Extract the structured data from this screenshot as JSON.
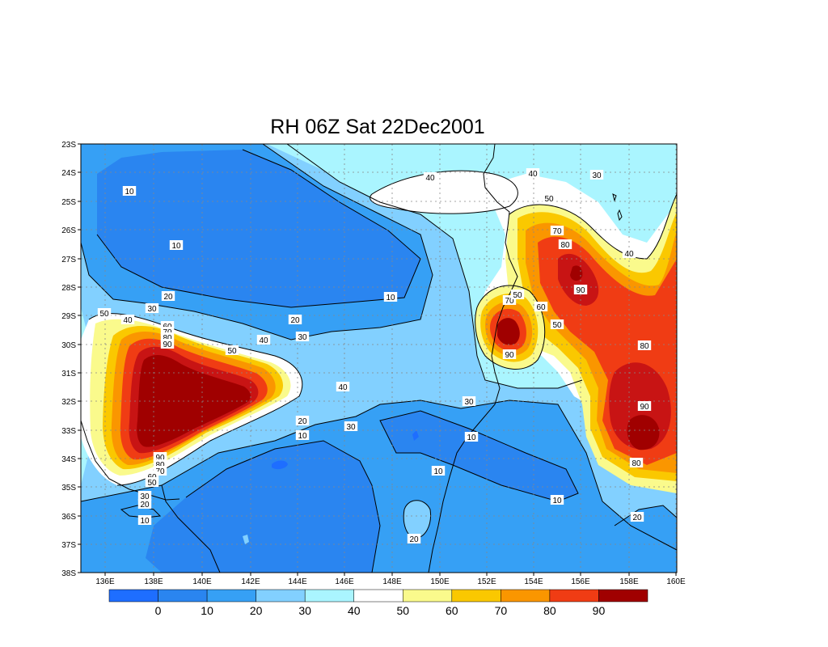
{
  "title": "RH 06Z Sat 22Dec2001",
  "colors": {
    "lt0": "#1e6eff",
    "b0_10": "#2a85f0",
    "b10_20": "#36a0f5",
    "b20_30": "#82d0ff",
    "b30_40": "#aaf5ff",
    "b40_50": "#ffffff",
    "b50_60": "#fafa8c",
    "b60_70": "#fac800",
    "b70_80": "#fa9600",
    "b80_90": "#f03c14",
    "gt90": "#c81414",
    "gt95": "#a00000"
  },
  "map": {
    "lon_ticks": [
      "136E",
      "138E",
      "140E",
      "142E",
      "144E",
      "146E",
      "148E",
      "150E",
      "152E",
      "154E",
      "156E",
      "158E",
      "160E"
    ],
    "lat_ticks": [
      "23S",
      "24S",
      "25S",
      "26S",
      "27S",
      "28S",
      "29S",
      "30S",
      "31S",
      "32S",
      "33S",
      "34S",
      "35S",
      "36S",
      "37S",
      "38S"
    ]
  },
  "colorbar": {
    "labels": [
      "0",
      "10",
      "20",
      "30",
      "40",
      "50",
      "60",
      "70",
      "80",
      "90"
    ],
    "colors": [
      "#1e6eff",
      "#2a85f0",
      "#36a0f5",
      "#82d0ff",
      "#aaf5ff",
      "#ffffff",
      "#fafa8c",
      "#fac800",
      "#fa9600",
      "#f03c14",
      "#a00000"
    ]
  },
  "contour_labels": [
    {
      "text": "10"
    },
    {
      "text": "10"
    },
    {
      "text": "20"
    },
    {
      "text": "30"
    },
    {
      "text": "40"
    },
    {
      "text": "50"
    },
    {
      "text": "60"
    },
    {
      "text": "70"
    },
    {
      "text": "80"
    },
    {
      "text": "90"
    },
    {
      "text": "50"
    },
    {
      "text": "40"
    },
    {
      "text": "30"
    },
    {
      "text": "20"
    },
    {
      "text": "10"
    },
    {
      "text": "40"
    },
    {
      "text": "20"
    },
    {
      "text": "30"
    },
    {
      "text": "10"
    },
    {
      "text": "10"
    },
    {
      "text": "20"
    },
    {
      "text": "90"
    },
    {
      "text": "80"
    },
    {
      "text": "70"
    },
    {
      "text": "60"
    },
    {
      "text": "50"
    },
    {
      "text": "30"
    },
    {
      "text": "20"
    },
    {
      "text": "10"
    },
    {
      "text": "40"
    },
    {
      "text": "40"
    },
    {
      "text": "50"
    },
    {
      "text": "30"
    },
    {
      "text": "70"
    },
    {
      "text": "80"
    },
    {
      "text": "90"
    },
    {
      "text": "40"
    },
    {
      "text": "60"
    },
    {
      "text": "70"
    },
    {
      "text": "50"
    },
    {
      "text": "90"
    },
    {
      "text": "50"
    },
    {
      "text": "80"
    },
    {
      "text": "90"
    },
    {
      "text": "80"
    },
    {
      "text": "10"
    },
    {
      "text": "10"
    },
    {
      "text": "30"
    },
    {
      "text": "20"
    },
    {
      "text": "10"
    }
  ]
}
